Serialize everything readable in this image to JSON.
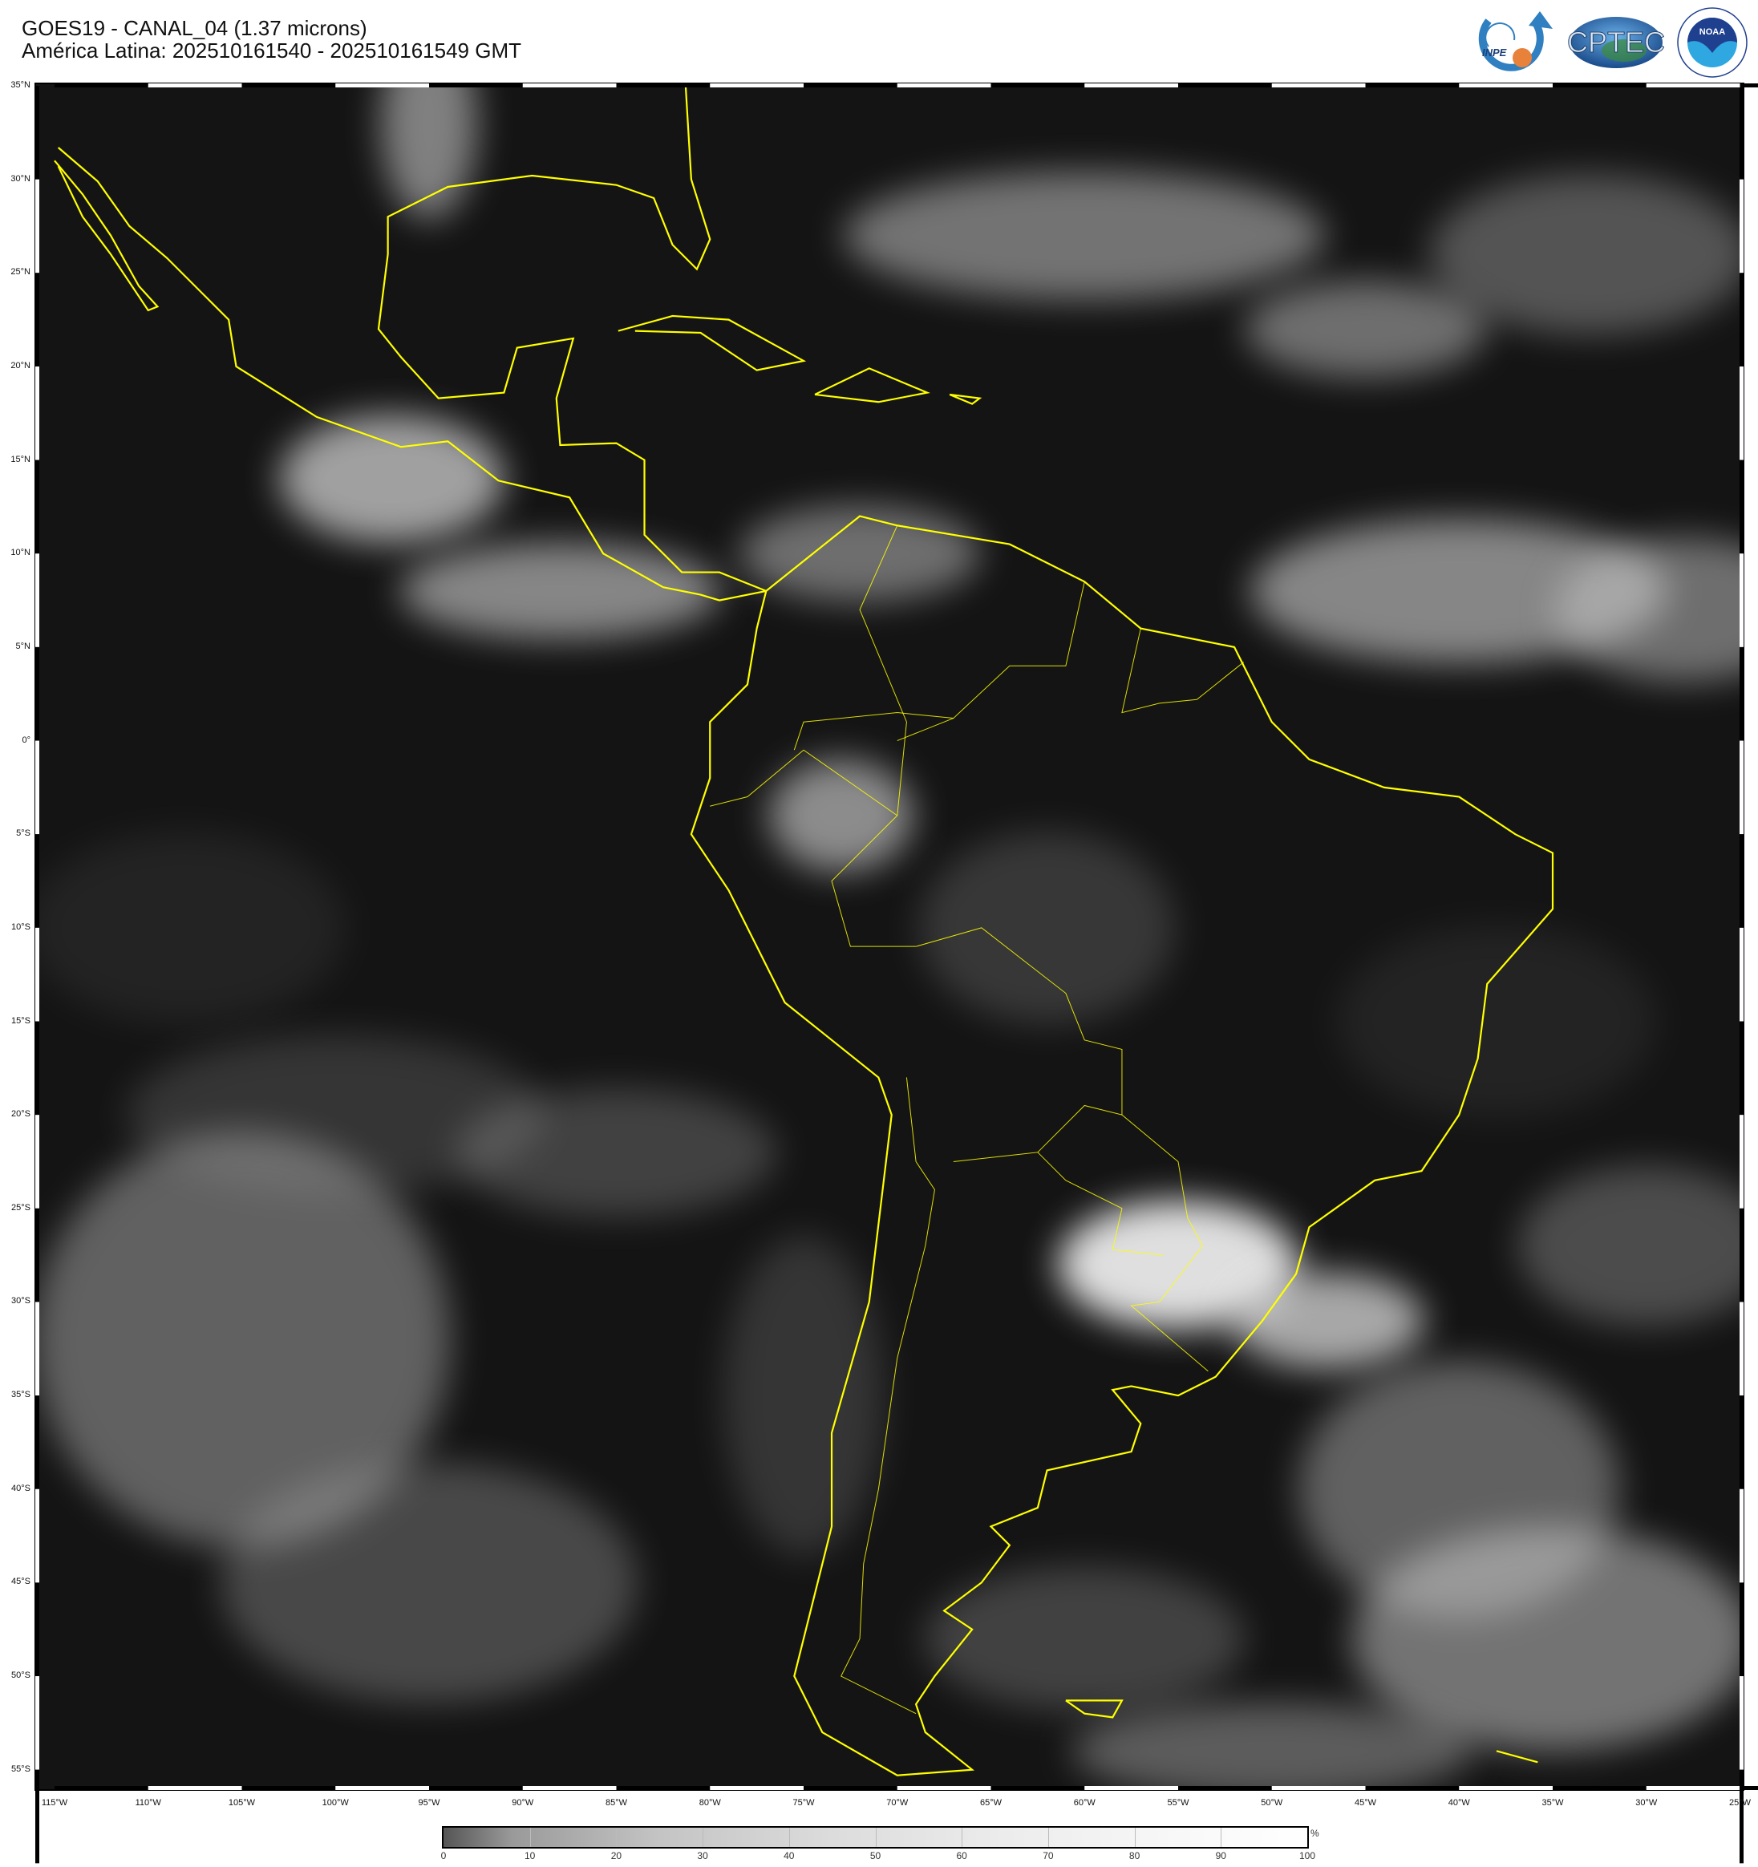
{
  "header": {
    "title": "GOES19 - CANAL_04 (1.37 microns)",
    "subtitle": "América Latina: 202510161540 - 202510161549 GMT"
  },
  "logos": [
    {
      "name": "INPE",
      "colors": [
        "#2f7fc1",
        "#e8823a"
      ]
    },
    {
      "name": "CPTEC",
      "colors": [
        "#2a5c9a",
        "#3a8a3a"
      ]
    },
    {
      "name": "NOAA",
      "text_ring": "NATIONAL OCEANIC AND ATMOSPHERIC ADMINISTRATION · U.S. DEPARTMENT OF COMMERCE",
      "colors": [
        "#1f3f8f",
        "#2fa7e0"
      ]
    }
  ],
  "map": {
    "type": "satellite-image",
    "channel": "CANAL_04",
    "coastline_color": "#ffff00",
    "lat_labels": [
      "35°N",
      "30°N",
      "25°N",
      "20°N",
      "15°N",
      "10°N",
      "5°N",
      "0°",
      "5°S",
      "10°S",
      "15°S",
      "20°S",
      "25°S",
      "30°S",
      "35°S",
      "40°S",
      "45°S",
      "50°S",
      "55°S"
    ],
    "lon_labels": [
      "115°W",
      "110°W",
      "105°W",
      "100°W",
      "95°W",
      "90°W",
      "85°W",
      "80°W",
      "75°W",
      "70°W",
      "65°W",
      "60°W",
      "55°W",
      "50°W",
      "45°W",
      "40°W",
      "35°W",
      "30°W",
      "25°W"
    ],
    "extent": {
      "lon": [
        -116,
        -25
      ],
      "lat": [
        -56.5,
        35.2
      ]
    }
  },
  "colorbar": {
    "unit": "%",
    "ticks": [
      "0",
      "10",
      "20",
      "30",
      "40",
      "50",
      "60",
      "70",
      "80",
      "90",
      "100"
    ],
    "range": [
      0,
      100
    ]
  }
}
